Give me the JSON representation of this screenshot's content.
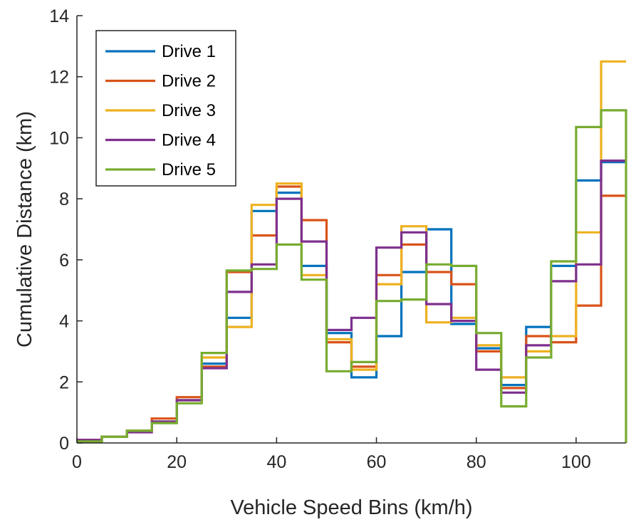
{
  "chart_data": {
    "type": "line",
    "title": "",
    "xlabel": "Vehicle Speed Bins (km/h)",
    "ylabel": "Cumulative Distance (km)",
    "xlim": [
      0,
      110
    ],
    "ylim": [
      0,
      14
    ],
    "xticks": [
      0,
      20,
      40,
      60,
      80,
      100
    ],
    "yticks": [
      0,
      2,
      4,
      6,
      8,
      10,
      12,
      14
    ],
    "grid": false,
    "legend_position": "top-left",
    "bin_edges": [
      0,
      5,
      10,
      15,
      20,
      25,
      30,
      35,
      40,
      45,
      50,
      55,
      60,
      65,
      70,
      75,
      80,
      85,
      90,
      95,
      100,
      105,
      110
    ],
    "series": [
      {
        "name": "Drive 1",
        "color": "#0072BD",
        "values": [
          0.1,
          0.2,
          0.4,
          0.7,
          1.4,
          2.6,
          4.1,
          7.6,
          8.2,
          5.8,
          3.6,
          2.15,
          3.5,
          5.6,
          7.0,
          3.9,
          3.1,
          1.9,
          3.8,
          5.8,
          8.6,
          9.2
        ]
      },
      {
        "name": "Drive 2",
        "color": "#D95319",
        "values": [
          0.1,
          0.2,
          0.4,
          0.8,
          1.5,
          2.5,
          5.6,
          6.8,
          8.4,
          7.3,
          3.3,
          2.5,
          5.5,
          6.5,
          5.6,
          5.2,
          3.0,
          1.8,
          3.5,
          3.3,
          4.5,
          8.1
        ]
      },
      {
        "name": "Drive 3",
        "color": "#EDB120",
        "values": [
          0.1,
          0.2,
          0.4,
          0.7,
          1.4,
          2.8,
          3.8,
          7.8,
          8.5,
          5.5,
          3.4,
          2.4,
          5.2,
          7.1,
          3.95,
          4.1,
          3.2,
          2.15,
          3.0,
          3.5,
          6.9,
          12.5
        ]
      },
      {
        "name": "Drive 4",
        "color": "#7E2F8E",
        "values": [
          0.1,
          0.2,
          0.35,
          0.7,
          1.4,
          2.45,
          4.95,
          5.85,
          8.0,
          6.6,
          3.7,
          4.1,
          6.4,
          6.9,
          4.55,
          4.0,
          2.4,
          1.65,
          3.2,
          5.3,
          5.85,
          9.25
        ]
      },
      {
        "name": "Drive 5",
        "color": "#77AC30",
        "values": [
          0.05,
          0.2,
          0.4,
          0.65,
          1.3,
          2.95,
          5.65,
          5.7,
          6.5,
          5.35,
          2.35,
          2.65,
          4.65,
          4.7,
          5.85,
          5.8,
          3.6,
          1.2,
          2.8,
          5.95,
          10.35,
          10.9
        ]
      }
    ]
  }
}
